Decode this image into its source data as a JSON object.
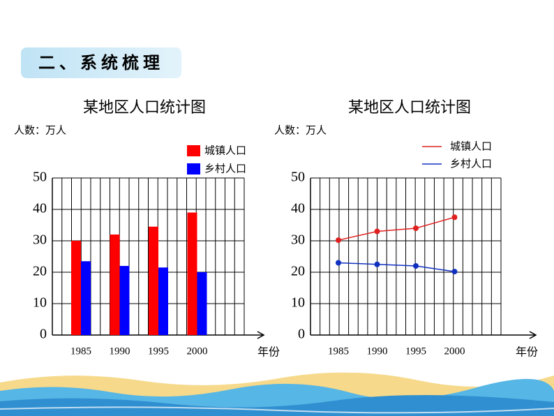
{
  "header": {
    "title": "二、系统梳理"
  },
  "chart_data": [
    {
      "type": "bar",
      "title": "某地区人口统计图",
      "y_label": "人数：万人",
      "x_label": "年份",
      "categories": [
        "1985",
        "1990",
        "1995",
        "2000"
      ],
      "series": [
        {
          "name": "城镇人口",
          "color": "#ff0000",
          "values": [
            30,
            32,
            34.5,
            39
          ]
        },
        {
          "name": "乡村人口",
          "color": "#0000ff",
          "values": [
            23.5,
            22,
            21.5,
            20
          ]
        }
      ],
      "ylim": [
        0,
        50
      ],
      "yticks": [
        0,
        10,
        20,
        30,
        40,
        50
      ],
      "grid": true
    },
    {
      "type": "line",
      "title": "某地区人口统计图",
      "y_label": "人数：万人",
      "x_label": "年份",
      "categories": [
        "1985",
        "1990",
        "1995",
        "2000"
      ],
      "series": [
        {
          "name": "城镇人口",
          "color": "#e02020",
          "values": [
            30.2,
            33,
            34,
            37.5
          ]
        },
        {
          "name": "乡村人口",
          "color": "#1030c0",
          "values": [
            23,
            22.5,
            22,
            20.2
          ]
        }
      ],
      "ylim": [
        0,
        50
      ],
      "yticks": [
        0,
        10,
        20,
        30,
        40,
        50
      ],
      "grid": true
    }
  ]
}
